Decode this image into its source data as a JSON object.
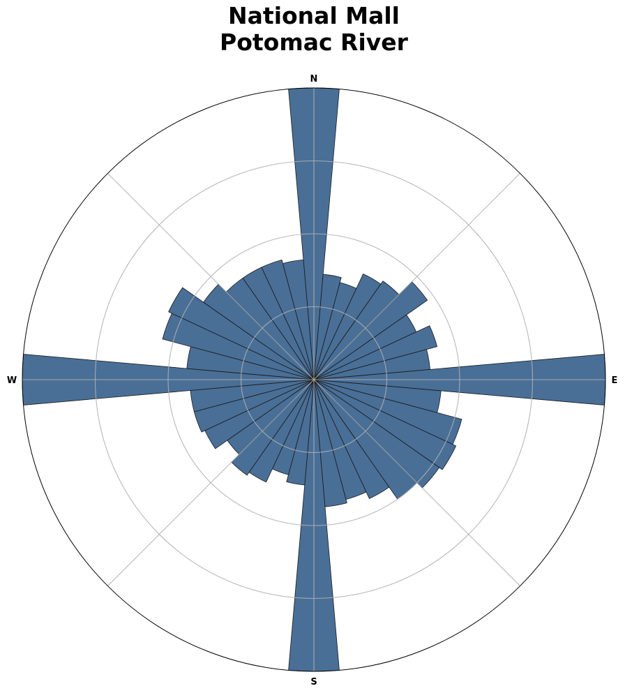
{
  "chart_data": {
    "type": "polar-bar",
    "title_lines": [
      "National Mall",
      "Potomac River"
    ],
    "direction_labels": [
      "N",
      "E",
      "S",
      "W"
    ],
    "bin_count": 36,
    "bin_width_degrees": 10,
    "bin_centers_degrees": [
      0,
      10,
      20,
      30,
      40,
      50,
      60,
      70,
      80,
      90,
      100,
      110,
      120,
      130,
      140,
      150,
      160,
      170,
      180,
      190,
      200,
      210,
      220,
      230,
      240,
      250,
      260,
      270,
      280,
      290,
      300,
      310,
      320,
      330,
      340,
      350
    ],
    "values": [
      400,
      145,
      138,
      160,
      165,
      190,
      155,
      175,
      160,
      400,
      175,
      210,
      215,
      210,
      200,
      180,
      170,
      175,
      400,
      145,
      135,
      155,
      160,
      145,
      165,
      170,
      170,
      400,
      175,
      215,
      220,
      185,
      170,
      170,
      170,
      165
    ],
    "radial_max": 400,
    "radial_gridlines": [
      100,
      200,
      300,
      400
    ],
    "angular_gridlines_degrees": [
      0,
      45,
      90,
      135,
      180,
      225,
      270,
      315
    ],
    "grid": true,
    "colors": {
      "bar_fill": "#355f8c",
      "bar_opacity": 0.9,
      "bar_edge": "#1a1a1a",
      "grid": "#b0b0b0",
      "outer_circle": "#000000"
    }
  }
}
